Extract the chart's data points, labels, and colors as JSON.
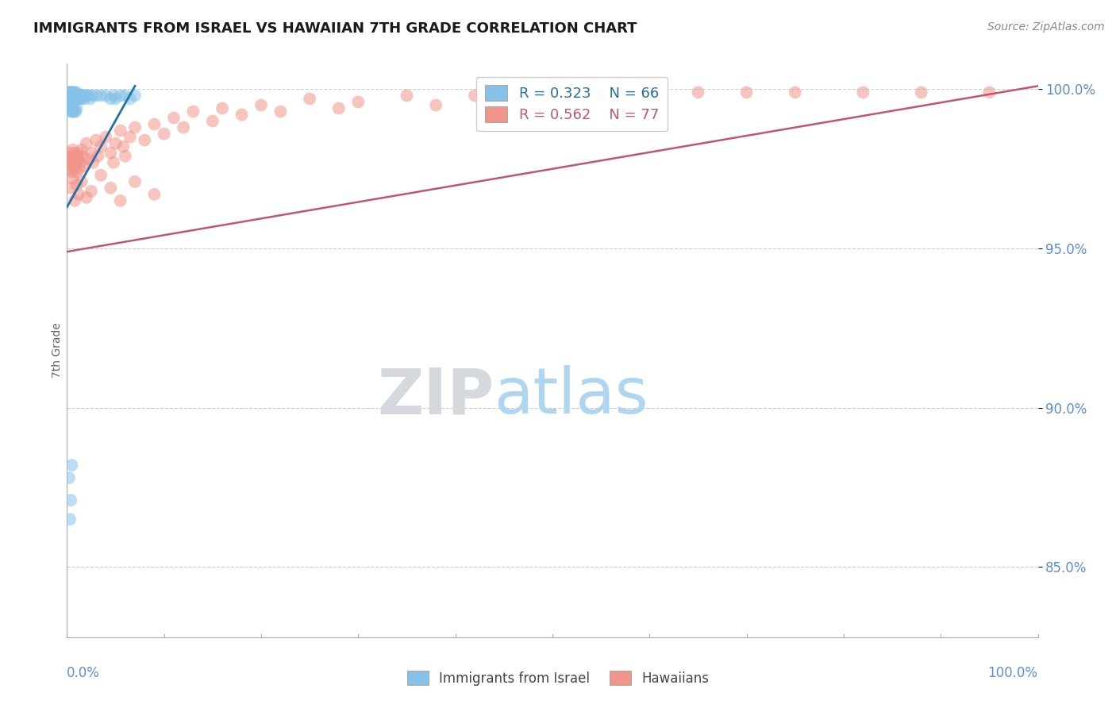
{
  "title": "IMMIGRANTS FROM ISRAEL VS HAWAIIAN 7TH GRADE CORRELATION CHART",
  "source": "Source: ZipAtlas.com",
  "ylabel": "7th Grade",
  "ytick_values": [
    0.85,
    0.9,
    0.95,
    1.0
  ],
  "xlim": [
    0.0,
    1.0
  ],
  "ylim": [
    0.828,
    1.008
  ],
  "legend_r_israel": "R = 0.323",
  "legend_n_israel": "N = 66",
  "legend_r_hawaiian": "R = 0.562",
  "legend_n_hawaiian": "N = 77",
  "legend_israel_label": "Immigrants from Israel",
  "legend_hawaiian_label": "Hawaiians",
  "israel_color": "#85C1E9",
  "hawaiian_color": "#F1948A",
  "israel_line_color": "#2471A3",
  "hawaiian_line_color": "#C0576A",
  "background_color": "#FFFFFF",
  "watermark_zip_color": "#D5D8DC",
  "watermark_atlas_color": "#AED6F1",
  "grid_color": "#CCCCCC",
  "axis_color": "#AAAAAA",
  "tick_label_color": "#5B8DD9",
  "title_color": "#1A1A1A",
  "israel_trend_x": [
    0.0,
    0.07
  ],
  "israel_trend_y": [
    0.963,
    1.001
  ],
  "hawaiian_trend_x": [
    0.0,
    1.0
  ],
  "hawaiian_trend_y": [
    0.949,
    1.001
  ],
  "israel_x": [
    0.002,
    0.002,
    0.003,
    0.003,
    0.003,
    0.004,
    0.004,
    0.004,
    0.005,
    0.005,
    0.005,
    0.005,
    0.006,
    0.006,
    0.006,
    0.006,
    0.007,
    0.007,
    0.007,
    0.008,
    0.008,
    0.008,
    0.009,
    0.009,
    0.01,
    0.01,
    0.01,
    0.011,
    0.011,
    0.012,
    0.012,
    0.013,
    0.013,
    0.014,
    0.015,
    0.015,
    0.016,
    0.017,
    0.018,
    0.019,
    0.02,
    0.022,
    0.024,
    0.026,
    0.03,
    0.035,
    0.04,
    0.045,
    0.048,
    0.05,
    0.055,
    0.06,
    0.065,
    0.07,
    0.003,
    0.004,
    0.005,
    0.006,
    0.007,
    0.008,
    0.009,
    0.01,
    0.002,
    0.003,
    0.004,
    0.005
  ],
  "israel_y": [
    0.999,
    0.998,
    0.999,
    0.998,
    0.997,
    0.999,
    0.998,
    0.997,
    0.999,
    0.998,
    0.997,
    0.996,
    0.999,
    0.998,
    0.997,
    0.996,
    0.999,
    0.998,
    0.997,
    0.999,
    0.998,
    0.997,
    0.998,
    0.997,
    0.999,
    0.998,
    0.997,
    0.998,
    0.997,
    0.998,
    0.997,
    0.998,
    0.997,
    0.998,
    0.998,
    0.997,
    0.998,
    0.998,
    0.997,
    0.998,
    0.998,
    0.998,
    0.997,
    0.998,
    0.998,
    0.998,
    0.998,
    0.997,
    0.998,
    0.997,
    0.998,
    0.998,
    0.997,
    0.998,
    0.994,
    0.993,
    0.993,
    0.993,
    0.994,
    0.993,
    0.993,
    0.994,
    0.878,
    0.865,
    0.871,
    0.882
  ],
  "hawaiian_x": [
    0.002,
    0.003,
    0.003,
    0.004,
    0.005,
    0.005,
    0.006,
    0.006,
    0.007,
    0.008,
    0.008,
    0.009,
    0.01,
    0.01,
    0.011,
    0.012,
    0.013,
    0.014,
    0.015,
    0.016,
    0.018,
    0.02,
    0.022,
    0.025,
    0.027,
    0.03,
    0.032,
    0.035,
    0.04,
    0.045,
    0.048,
    0.05,
    0.055,
    0.058,
    0.06,
    0.065,
    0.07,
    0.08,
    0.09,
    0.1,
    0.11,
    0.12,
    0.13,
    0.15,
    0.16,
    0.18,
    0.2,
    0.22,
    0.25,
    0.28,
    0.3,
    0.35,
    0.38,
    0.42,
    0.46,
    0.5,
    0.55,
    0.6,
    0.65,
    0.7,
    0.75,
    0.82,
    0.88,
    0.95,
    0.004,
    0.006,
    0.008,
    0.01,
    0.012,
    0.015,
    0.02,
    0.025,
    0.035,
    0.045,
    0.055,
    0.07,
    0.09
  ],
  "hawaiian_y": [
    0.978,
    0.98,
    0.975,
    0.977,
    0.979,
    0.974,
    0.981,
    0.976,
    0.978,
    0.98,
    0.975,
    0.977,
    0.979,
    0.974,
    0.978,
    0.98,
    0.975,
    0.977,
    0.981,
    0.979,
    0.976,
    0.983,
    0.978,
    0.98,
    0.977,
    0.984,
    0.979,
    0.982,
    0.985,
    0.98,
    0.977,
    0.983,
    0.987,
    0.982,
    0.979,
    0.985,
    0.988,
    0.984,
    0.989,
    0.986,
    0.991,
    0.988,
    0.993,
    0.99,
    0.994,
    0.992,
    0.995,
    0.993,
    0.997,
    0.994,
    0.996,
    0.998,
    0.995,
    0.998,
    0.997,
    0.999,
    0.998,
    0.999,
    0.999,
    0.999,
    0.999,
    0.999,
    0.999,
    0.999,
    0.969,
    0.972,
    0.965,
    0.97,
    0.967,
    0.971,
    0.966,
    0.968,
    0.973,
    0.969,
    0.965,
    0.971,
    0.967
  ]
}
